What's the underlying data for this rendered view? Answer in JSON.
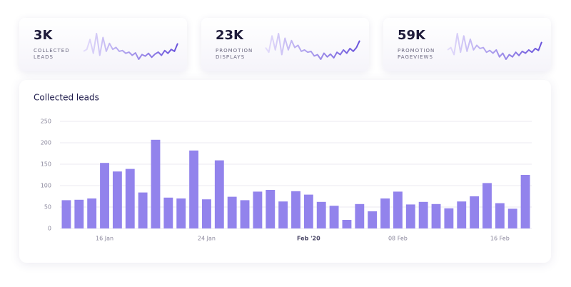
{
  "cards": [
    {
      "value": "3K",
      "label": "COLLECTED LEADS",
      "sparkline": [
        40,
        45,
        70,
        35,
        85,
        30,
        75,
        40,
        60,
        45,
        50,
        40,
        42,
        35,
        38,
        30,
        36,
        20,
        32,
        28,
        35,
        25,
        33,
        38,
        30,
        42,
        35,
        45,
        40,
        60
      ]
    },
    {
      "value": "23K",
      "label": "PROMOTION DISPLAYS",
      "sparkline": [
        50,
        40,
        75,
        45,
        80,
        35,
        70,
        45,
        65,
        50,
        55,
        42,
        45,
        40,
        42,
        32,
        35,
        25,
        38,
        30,
        36,
        28,
        40,
        35,
        45,
        38,
        48,
        42,
        50,
        65
      ]
    },
    {
      "value": "59K",
      "label": "PROMOTION PAGEVIEWS",
      "sparkline": [
        45,
        50,
        35,
        80,
        40,
        75,
        42,
        68,
        45,
        55,
        48,
        50,
        40,
        44,
        38,
        45,
        30,
        38,
        25,
        35,
        30,
        40,
        33,
        42,
        38,
        45,
        40,
        48,
        44,
        62
      ]
    }
  ],
  "chart_data": {
    "type": "bar",
    "title": "Collected leads",
    "categories": [
      null,
      null,
      null,
      "16 Jan",
      null,
      null,
      null,
      null,
      null,
      null,
      null,
      "24 Jan",
      null,
      null,
      null,
      null,
      null,
      null,
      null,
      "Feb '20",
      null,
      null,
      null,
      null,
      null,
      null,
      "08 Feb",
      null,
      null,
      null,
      null,
      null,
      null,
      null,
      "16 Feb",
      null,
      null
    ],
    "values": [
      66,
      67,
      70,
      153,
      133,
      139,
      84,
      207,
      72,
      70,
      182,
      68,
      159,
      74,
      66,
      86,
      90,
      63,
      87,
      79,
      62,
      53,
      20,
      57,
      40,
      70,
      86,
      56,
      62,
      57,
      47,
      63,
      75,
      106,
      59,
      46,
      125
    ],
    "color": "#9283ec",
    "ylim": [
      0,
      250
    ],
    "yticks": [
      0,
      50,
      100,
      150,
      200,
      250
    ],
    "grid": true
  }
}
